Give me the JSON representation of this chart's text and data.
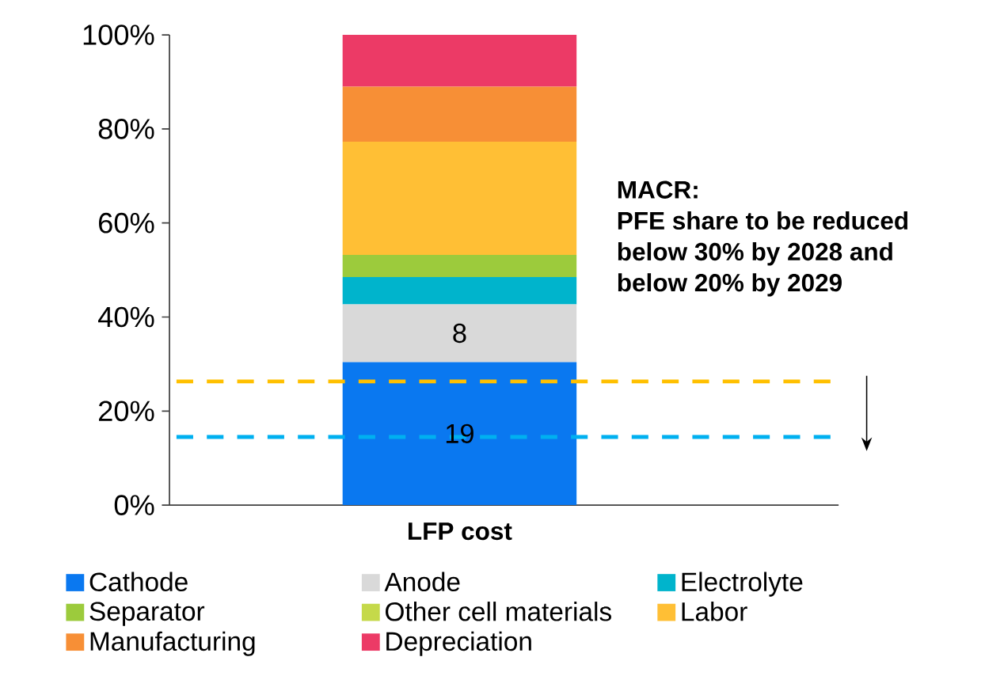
{
  "chart_data": {
    "type": "bar",
    "stacked": true,
    "categories": [
      "LFP cost"
    ],
    "series": [
      {
        "name": "Cathode",
        "color": "#0a78f0",
        "values": [
          30.4
        ]
      },
      {
        "name": "Anode",
        "color": "#d9d9d9",
        "values": [
          12.3
        ]
      },
      {
        "name": "Electrolyte",
        "color": "#00b4cc",
        "values": [
          5.8
        ]
      },
      {
        "name": "Separator",
        "color": "#9ccb3c",
        "values": [
          4.7
        ]
      },
      {
        "name": "Other cell materials",
        "color": "#c5d94a",
        "values": [
          0
        ]
      },
      {
        "name": "Labor",
        "color": "#ffbf35",
        "values": [
          24.1
        ]
      },
      {
        "name": "Manufacturing",
        "color": "#f78f36",
        "values": [
          11.7
        ]
      },
      {
        "name": "Depreciation",
        "color": "#ec3a66",
        "values": [
          11.0
        ]
      }
    ],
    "ylim": [
      0,
      100
    ],
    "yticks": [
      {
        "value": 0,
        "label": "0%"
      },
      {
        "value": 20,
        "label": "20%"
      },
      {
        "value": 40,
        "label": "40%"
      },
      {
        "value": 60,
        "label": "60%"
      },
      {
        "value": 80,
        "label": "80%"
      },
      {
        "value": 100,
        "label": "100%"
      }
    ],
    "ref_lines": [
      {
        "axis": "y",
        "value": 26.3,
        "color": "#ffc000",
        "line_style": "dashed"
      },
      {
        "axis": "y",
        "value": 14.5,
        "color": "#00b0f0",
        "line_style": "dashed"
      }
    ],
    "annotations": [
      "MACR:",
      "PFE share to be reduced",
      "below 30% by 2028 and",
      "below 20% by 2029",
      "19",
      "8"
    ],
    "legend": "bottom",
    "grid": false
  }
}
